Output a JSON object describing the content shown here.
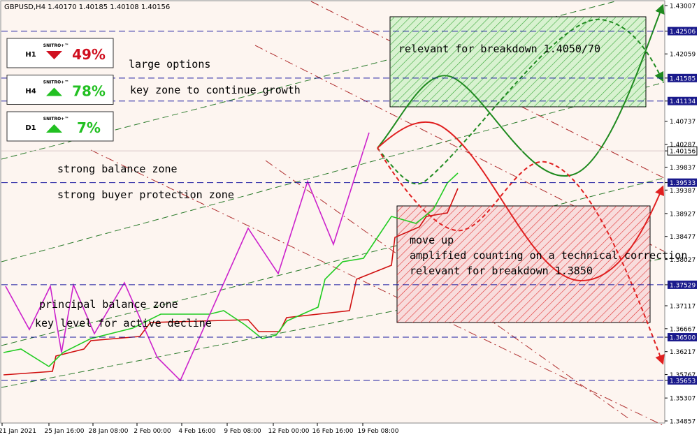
{
  "header": {
    "title": "GBPUSD,H4  1.40170 1.40185 1.40108 1.40156"
  },
  "price_axis": [
    {
      "label": "1.43007",
      "style": "plain"
    },
    {
      "label": "1.42506",
      "style": "level"
    },
    {
      "label": "1.42059",
      "style": "plain"
    },
    {
      "label": "1.41585",
      "style": "level"
    },
    {
      "label": "1.41134",
      "style": "level"
    },
    {
      "label": "1.40737",
      "style": "plain"
    },
    {
      "label": "1.40287",
      "style": "plain"
    },
    {
      "label": "1.40156",
      "style": "current"
    },
    {
      "label": "1.39837",
      "style": "plain"
    },
    {
      "label": "1.39533",
      "style": "level"
    },
    {
      "label": "1.39387",
      "style": "plain"
    },
    {
      "label": "1.38927",
      "style": "plain"
    },
    {
      "label": "1.38477",
      "style": "plain"
    },
    {
      "label": "1.38027",
      "style": "plain"
    },
    {
      "label": "1.37529",
      "style": "level"
    },
    {
      "label": "1.37117",
      "style": "plain"
    },
    {
      "label": "1.36667",
      "style": "plain"
    },
    {
      "label": "1.36500",
      "style": "level"
    },
    {
      "label": "1.36217",
      "style": "plain"
    },
    {
      "label": "1.35767",
      "style": "plain"
    },
    {
      "label": "1.35653",
      "style": "level"
    },
    {
      "label": "1.35307",
      "style": "plain"
    },
    {
      "label": "1.34857",
      "style": "plain"
    }
  ],
  "date_axis": [
    "21 Jan 2021",
    "25 Jan 16:00",
    "28 Jan 08:00",
    "2 Feb 00:00",
    "4 Feb 16:00",
    "9 Feb 08:00",
    "12 Feb 00:00",
    "16 Feb 16:00",
    "19 Feb 08:00"
  ],
  "panels": [
    {
      "timeframe": "H1",
      "brand": "SNITRO+™",
      "percent": "49%",
      "direction": "down"
    },
    {
      "timeframe": "H4",
      "brand": "SNITRO+™",
      "percent": "78%",
      "direction": "up"
    },
    {
      "timeframe": "D1",
      "brand": "SNITRO+™",
      "percent": "7%",
      "direction": "up"
    }
  ],
  "annotations": [
    "large options",
    "key zone to continue growth",
    "strong balance zone",
    "strong buyer protection zone",
    "principal balance zone",
    "key level for active decline",
    "relevant for breakdown 1.4050/70",
    "move up",
    "amplified counting on a technical correction",
    "relevant for breakdown 1.3850"
  ]
}
